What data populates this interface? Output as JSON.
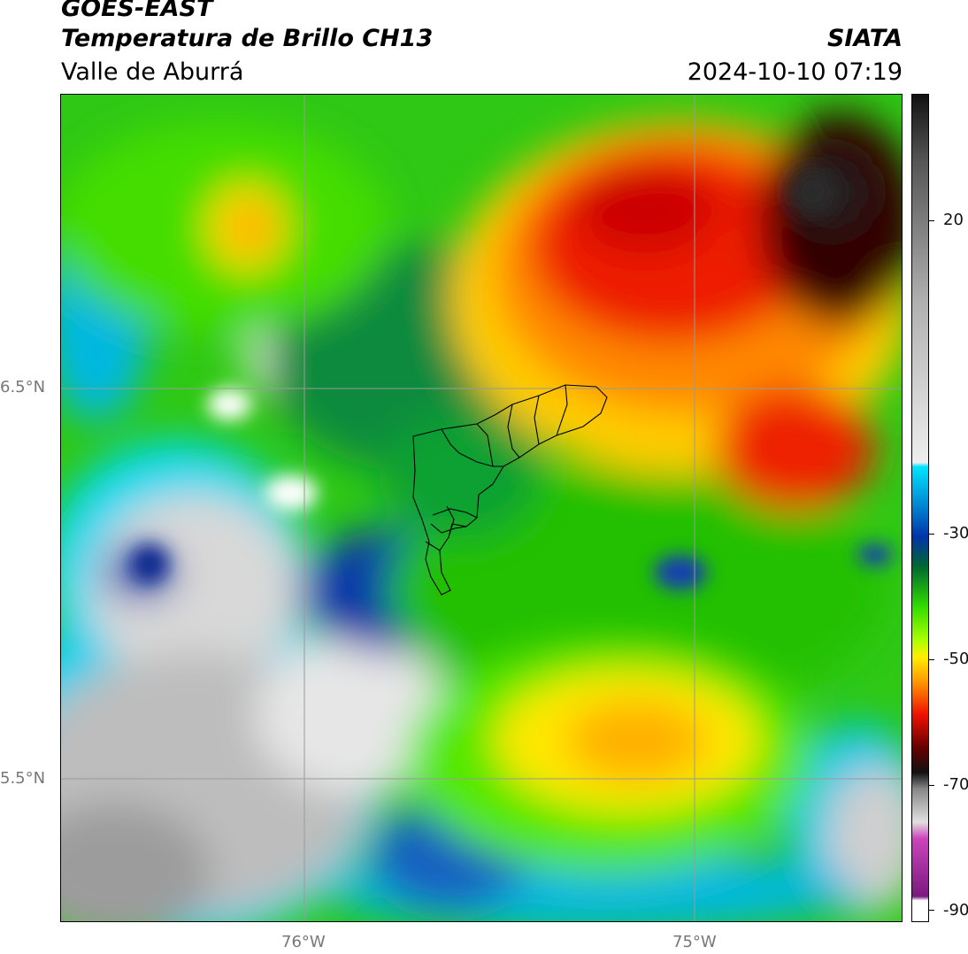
{
  "header": {
    "satellite": "GOES-EAST",
    "product": "Temperatura de Brillo CH13",
    "region": "Valle de Aburrá",
    "agency": "SIATA",
    "datetime": "2024-10-10 07:19"
  },
  "map": {
    "lat_labels": [
      "6.5°N",
      "5.5°N"
    ],
    "lon_labels": [
      "76°W",
      "75°W"
    ]
  },
  "colorbar": {
    "range": [
      -90,
      40
    ],
    "labels": [
      "20",
      "-30",
      "-50",
      "-70",
      "-90"
    ],
    "label_values": [
      20,
      -30,
      -50,
      -70,
      -90
    ]
  },
  "colors": {
    "warm_gray": "#9a9a9a",
    "cyan": "#00e5ff",
    "blue": "#0033aa",
    "dark_green": "#006633",
    "green": "#33dd00",
    "yellow": "#ffee00",
    "orange": "#ff9900",
    "red": "#ee1100",
    "dark_red": "#660000",
    "black": "#111111",
    "magenta": "#cc44bb"
  }
}
